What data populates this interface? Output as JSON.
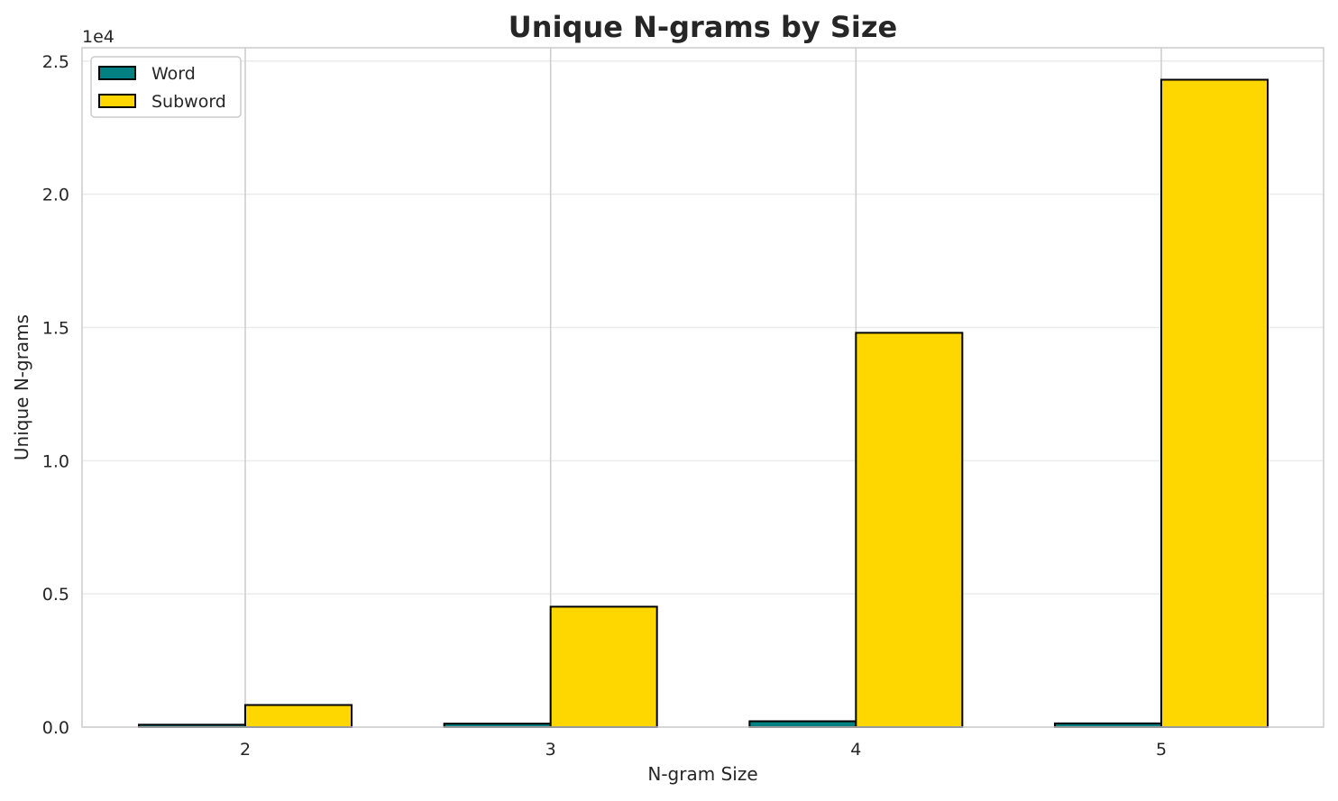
{
  "chart_data": {
    "type": "bar",
    "title": "Unique N-grams by Size",
    "xlabel": "N-gram Size",
    "ylabel": "Unique N-grams",
    "y_offset_label": "1e4",
    "categories": [
      "2",
      "3",
      "4",
      "5"
    ],
    "series": [
      {
        "name": "Word",
        "color": "#008080",
        "values": [
          90,
          130,
          220,
          140
        ]
      },
      {
        "name": "Subword",
        "color": "#FFD700",
        "values": [
          830,
          4520,
          14800,
          24300
        ]
      }
    ],
    "ylim": [
      0,
      25500
    ],
    "yticks": [
      0,
      5000,
      10000,
      15000,
      20000,
      25000
    ],
    "ytick_labels": [
      "0.0",
      "0.5",
      "1.0",
      "1.5",
      "2.0",
      "2.5"
    ],
    "grid": true,
    "legend_position": "top-left",
    "bar_edge_color": "#000000"
  }
}
